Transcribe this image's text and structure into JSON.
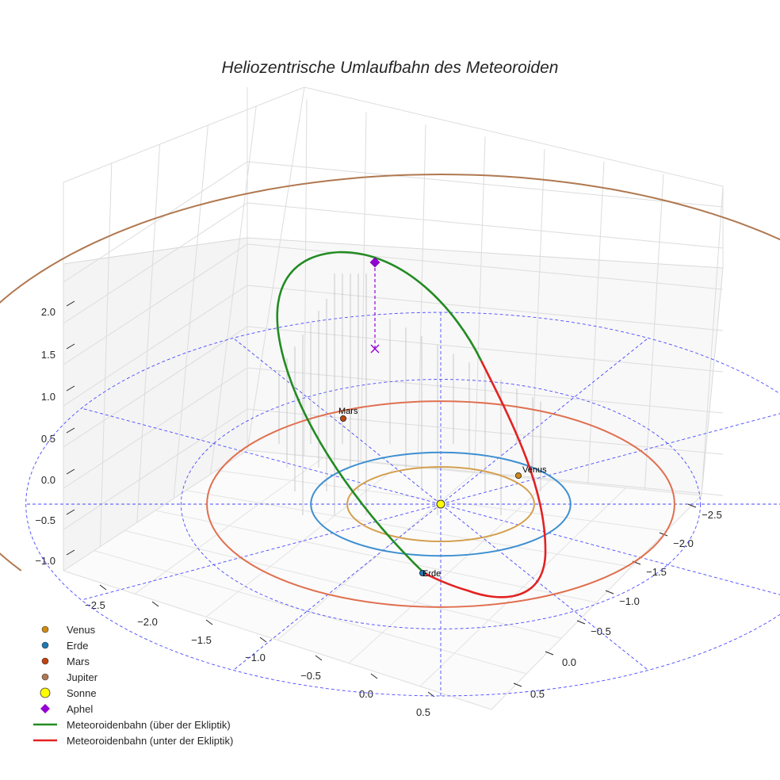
{
  "chart_data": {
    "type": "3d-line",
    "title": "Heliozentrische Umlaufbahn des Meteoroiden",
    "x_ticks": [
      "−2.5",
      "−2.0",
      "−1.5",
      "−1.0",
      "−0.5",
      "0.0",
      "0.5"
    ],
    "y_ticks": [
      "−2.5",
      "−2.0",
      "−1.5",
      "−1.0",
      "−0.5",
      "0.0",
      "0.5"
    ],
    "z_ticks": [
      "−1.0",
      "−0.5",
      "0.0",
      "0.5",
      "1.0",
      "1.5",
      "2.0"
    ],
    "grid": true,
    "legend_position": "bottom-left",
    "legend": [
      {
        "label": "Venus",
        "kind": "marker",
        "color": "#d08a12",
        "shape": "circle"
      },
      {
        "label": "Erde",
        "kind": "marker",
        "color": "#1f77b4",
        "shape": "circle"
      },
      {
        "label": "Mars",
        "kind": "marker",
        "color": "#c1440e",
        "shape": "circle"
      },
      {
        "label": "Jupiter",
        "kind": "marker",
        "color": "#b07850",
        "shape": "circle"
      },
      {
        "label": "Sonne",
        "kind": "marker",
        "color": "#ffff00",
        "shape": "circle-large"
      },
      {
        "label": "Aphel",
        "kind": "marker",
        "color": "#9400d3",
        "shape": "diamond"
      },
      {
        "label": "Meteoroidenbahn (über der Ekliptik)",
        "kind": "line",
        "color": "#228b22"
      },
      {
        "label": "Meteoroidenbahn (unter der Ekliptik)",
        "kind": "line",
        "color": "#e32222"
      }
    ],
    "planets": [
      {
        "name": "Venus",
        "orbit_radius_au": 0.72,
        "position_au": [
          0.6,
          -0.4,
          0
        ],
        "label": "Venus",
        "color": "#d08a12"
      },
      {
        "name": "Erde",
        "orbit_radius_au": 1.0,
        "position_au": [
          -0.1,
          0.99,
          0
        ],
        "label": "Erde",
        "color": "#1f77b4"
      },
      {
        "name": "Mars",
        "orbit_radius_au": 1.52,
        "position_au": [
          -1.05,
          -1.1,
          0
        ],
        "label": "Mars",
        "color": "#c1440e"
      },
      {
        "name": "Jupiter",
        "orbit_radius_au": 5.2,
        "color": "#b07850"
      }
    ],
    "sun": {
      "name": "Sonne",
      "position_au": [
        0,
        0,
        0
      ],
      "color": "#ffff00"
    },
    "meteoroid_orbit": {
      "semi_major_axis_au": 1.9,
      "eccentricity": 0.53,
      "inclination_deg": 62,
      "perihelion_near": "Erde",
      "above_ecliptic_color": "#228b22",
      "below_ecliptic_color": "#e32222"
    },
    "aphel": {
      "label": "Aphel",
      "color": "#9400d3",
      "z_au": 2.4
    },
    "ecliptic_reference": {
      "ring_radii_au": [
        2,
        3
      ],
      "radial_lines": 12,
      "color": "#4a4aff"
    }
  }
}
